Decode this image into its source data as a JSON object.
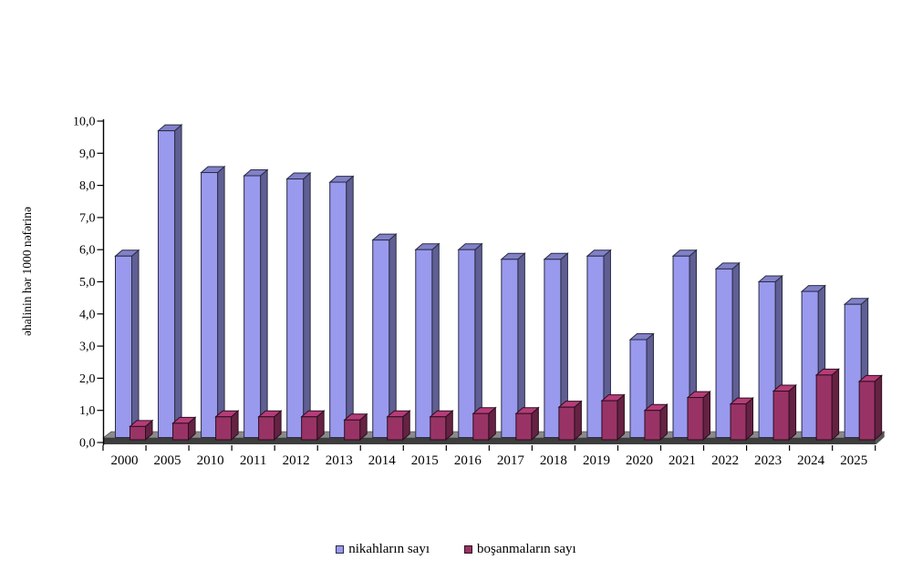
{
  "chart_data": {
    "type": "bar",
    "style": "3d-column",
    "title": "",
    "xlabel": "",
    "ylabel": "əhalinin hər 1000 nəfərinə",
    "categories": [
      "2000",
      "2005",
      "2010",
      "2011",
      "2012",
      "2013",
      "2014",
      "2015",
      "2016",
      "2017",
      "2018",
      "2019",
      "2020",
      "2021",
      "2022",
      "2023",
      "2024",
      "2025"
    ],
    "series": [
      {
        "name": "nikahların sayı",
        "color": "#9999EE",
        "values": [
          5.8,
          9.7,
          8.4,
          8.3,
          8.2,
          8.1,
          6.3,
          6.0,
          6.0,
          5.7,
          5.7,
          5.8,
          3.2,
          5.8,
          5.4,
          5.0,
          4.7,
          4.3
        ]
      },
      {
        "name": "boşanmaların sayı",
        "color": "#993366",
        "values": [
          0.5,
          0.6,
          0.8,
          0.8,
          0.8,
          0.7,
          0.8,
          0.8,
          0.9,
          0.9,
          1.1,
          1.3,
          1.0,
          1.4,
          1.2,
          1.6,
          2.1,
          1.9
        ]
      }
    ],
    "ylim": [
      0,
      10
    ],
    "ytick_step": 1.0,
    "ytick_labels": [
      "0,0",
      "1,0",
      "2,0",
      "3,0",
      "4,0",
      "5,0",
      "6,0",
      "7,0",
      "8,0",
      "9,0",
      "10,0"
    ],
    "decimal_separator": ",",
    "grid": false,
    "legend_position": "bottom",
    "floor_color": "#8A8A8A",
    "axis_color": "#000000"
  }
}
